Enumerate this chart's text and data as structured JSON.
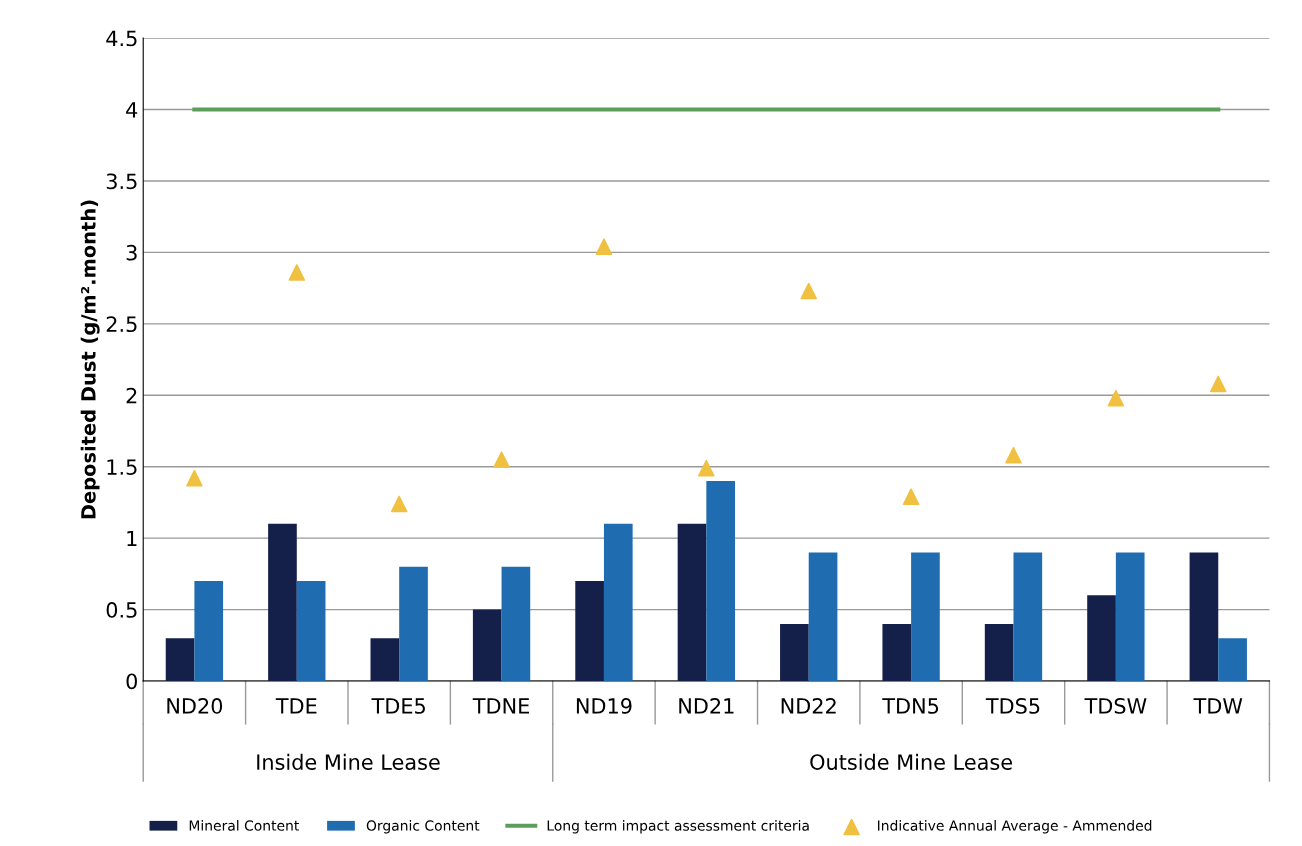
{
  "chart_data": {
    "type": "bar",
    "ylabel": "Deposited Dust (g/m².month)",
    "categories": [
      "ND20",
      "TDE",
      "TDE5",
      "TDNE",
      "ND19",
      "ND21",
      "ND22",
      "TDN5",
      "TDS5",
      "TDSW",
      "TDW"
    ],
    "series": [
      {
        "name": "Mineral Content",
        "color": "#14204a",
        "values": [
          0.3,
          1.1,
          0.3,
          0.5,
          0.7,
          1.1,
          0.4,
          0.4,
          0.4,
          0.6,
          0.9
        ]
      },
      {
        "name": "Organic Content",
        "color": "#1f6cb0",
        "values": [
          0.7,
          0.7,
          0.8,
          0.8,
          1.1,
          1.4,
          0.9,
          0.9,
          0.9,
          0.9,
          0.3
        ]
      },
      {
        "name": "Long term impact assessment criteria",
        "type": "line",
        "color": "#5a9e5a",
        "values": [
          4,
          4,
          4,
          4,
          4,
          4,
          4,
          4,
          4,
          4,
          4
        ]
      },
      {
        "name": "Indicative Annual Average - Ammended",
        "type": "scatter",
        "marker": "triangle",
        "color": "#f0c040",
        "values": [
          1.42,
          2.86,
          1.24,
          1.55,
          3.04,
          1.49,
          2.73,
          1.29,
          1.58,
          1.98,
          2.08
        ]
      }
    ],
    "annotations": [
      "Inside Mine Lease",
      "Outside Mine Lease"
    ],
    "ylim": [
      0,
      4.5
    ],
    "yticks": [
      0,
      0.5,
      1,
      1.5,
      2,
      2.5,
      3,
      3.5,
      4,
      4.5
    ],
    "grid": "y",
    "legend": "bottom"
  }
}
